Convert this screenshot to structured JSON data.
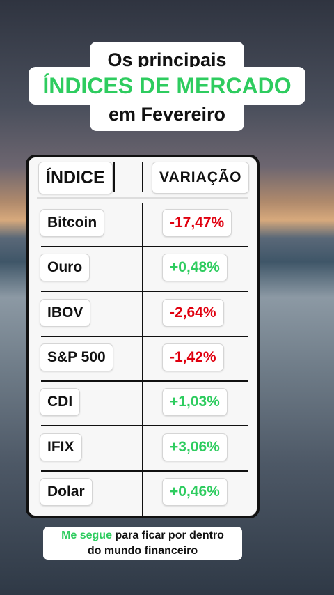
{
  "header": {
    "line1": "Os principais",
    "line2": "ÍNDICES DE MERCADO",
    "line3": "em Fevereiro"
  },
  "table": {
    "columns": [
      "ÍNDICE",
      "VARIAÇÃO"
    ],
    "rows": [
      [
        "Bitcoin",
        "-17,47%"
      ],
      [
        "Ouro",
        "+0,48%"
      ],
      [
        "IBOV",
        "-2,64%"
      ],
      [
        "S&P 500",
        "-1,42%"
      ],
      [
        "CDI",
        "+1,03%"
      ],
      [
        "IFIX",
        "+3,06%"
      ],
      [
        "Dolar",
        "+0,46%"
      ]
    ]
  },
  "footer": {
    "highlight": "Me segue",
    "line1_rest": "para ficar por dentro",
    "line2": "do mundo financeiro"
  }
}
